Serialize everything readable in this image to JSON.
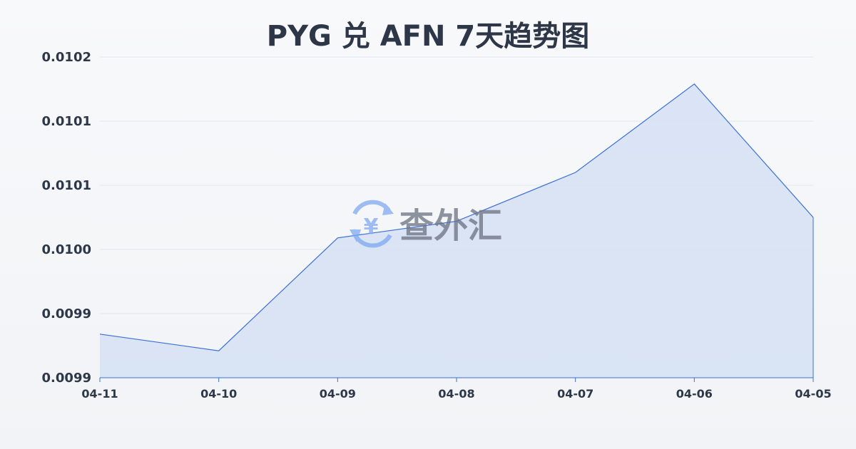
{
  "chart_data": {
    "type": "area",
    "title": "PYG 兑 AFN 7天趋势图",
    "xlabel": "",
    "ylabel": "",
    "categories": [
      "04-11",
      "04-10",
      "04-09",
      "04-08",
      "04-07",
      "04-06",
      "04-05"
    ],
    "values": [
      0.009934,
      0.009921,
      0.010009,
      0.010022,
      0.01006,
      0.010129,
      0.010025
    ],
    "ylim": [
      0.0099,
      0.01015
    ],
    "yticks": [
      0.0099,
      0.00995,
      0.01,
      0.01005,
      0.0101,
      0.01015
    ],
    "ytick_labels": [
      "0.0099",
      "0.0099",
      "0.0100",
      "0.0101",
      "0.0101",
      "0.0102"
    ],
    "grid": true,
    "colors": {
      "line": "#3b6fd4",
      "fill": "#d5e0f5",
      "grid": "#e3e6ea"
    }
  },
  "watermark": {
    "text": "查外汇",
    "icon": "yen-exchange-icon"
  }
}
